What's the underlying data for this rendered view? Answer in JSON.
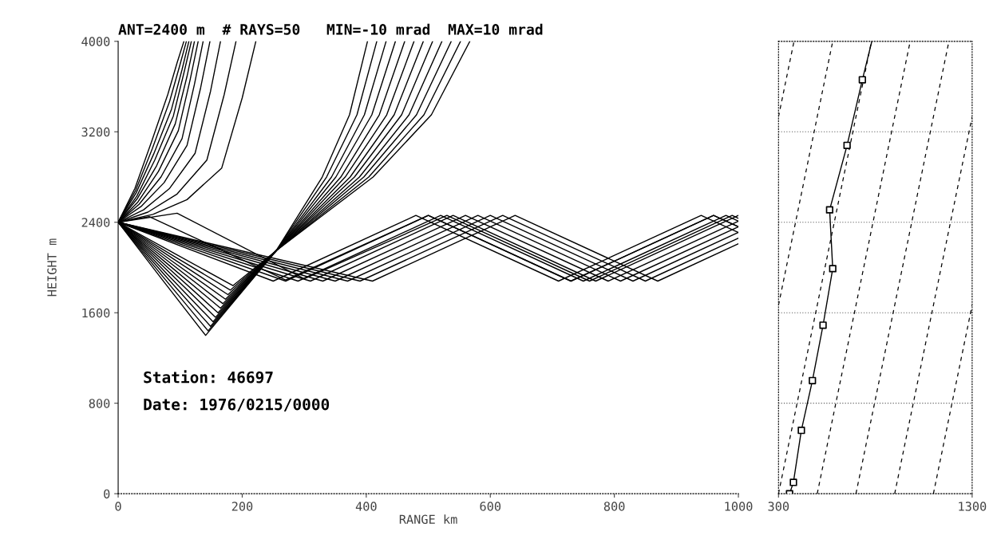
{
  "chart_data": [
    {
      "type": "line",
      "title": "ANT=2400 m  # RAYS=50   MIN=-10 mrad  MAX=10 mrad",
      "xlabel": "RANGE km",
      "ylabel": "HEIGHT m",
      "xlim": [
        0,
        1000
      ],
      "ylim": [
        0,
        4000
      ],
      "xticks": [
        0,
        200,
        400,
        600,
        800,
        1000
      ],
      "yticks": [
        0,
        800,
        1600,
        2400,
        3200,
        4000
      ],
      "grid": false,
      "legend": false,
      "color": "#000000",
      "annotations": [
        "Station: 46697",
        "Date: 1976/0215/0000"
      ],
      "series": [
        {
          "x": [
            0,
            27,
            53,
            80,
            95,
            106
          ],
          "values": [
            2400,
            2700,
            3100,
            3530,
            3810,
            4000
          ]
        },
        {
          "x": [
            0,
            28,
            55,
            83,
            99,
            110
          ],
          "values": [
            2400,
            2680,
            3050,
            3470,
            3780,
            4000
          ]
        },
        {
          "x": [
            0,
            29,
            57,
            86,
            103,
            114
          ],
          "values": [
            2400,
            2660,
            3000,
            3400,
            3750,
            4000
          ]
        },
        {
          "x": [
            0,
            30,
            59,
            89,
            106,
            118
          ],
          "values": [
            2400,
            2630,
            2950,
            3340,
            3720,
            4000
          ]
        },
        {
          "x": [
            0,
            31,
            62,
            92,
            111,
            123
          ],
          "values": [
            2400,
            2610,
            2900,
            3270,
            3690,
            4000
          ]
        },
        {
          "x": [
            0,
            32,
            65,
            97,
            116,
            129
          ],
          "values": [
            2400,
            2580,
            2850,
            3210,
            3660,
            4000
          ]
        },
        {
          "x": [
            0,
            34,
            69,
            103,
            123,
            137
          ],
          "values": [
            2400,
            2560,
            2800,
            3140,
            3620,
            4000
          ]
        },
        {
          "x": [
            0,
            37,
            74,
            111,
            133,
            148
          ],
          "values": [
            2400,
            2540,
            2750,
            3080,
            3590,
            4000
          ]
        },
        {
          "x": [
            0,
            41,
            83,
            124,
            149,
            165
          ],
          "values": [
            2400,
            2510,
            2700,
            3010,
            3560,
            4000
          ]
        },
        {
          "x": [
            0,
            48,
            95,
            143,
            171,
            190
          ],
          "values": [
            2400,
            2490,
            2650,
            2950,
            3530,
            4000
          ]
        },
        {
          "x": [
            0,
            56,
            111,
            167,
            200,
            222
          ],
          "values": [
            2400,
            2470,
            2600,
            2880,
            3500,
            4000
          ]
        },
        {
          "x": [
            0,
            70,
            141,
            255,
            329,
            373,
            402
          ],
          "values": [
            2400,
            1900,
            1400,
            2150,
            2800,
            3350,
            4000
          ]
        },
        {
          "x": [
            0,
            72,
            145,
            255,
            336,
            385,
            417
          ],
          "values": [
            2400,
            1920,
            1440,
            2150,
            2800,
            3350,
            4000
          ]
        },
        {
          "x": [
            0,
            74,
            149,
            255,
            344,
            397,
            432
          ],
          "values": [
            2400,
            1940,
            1480,
            2150,
            2800,
            3350,
            4000
          ]
        },
        {
          "x": [
            0,
            76,
            153,
            255,
            351,
            409,
            447
          ],
          "values": [
            2400,
            1960,
            1520,
            2150,
            2800,
            3350,
            4000
          ]
        },
        {
          "x": [
            0,
            78,
            157,
            255,
            359,
            421,
            462
          ],
          "values": [
            2400,
            1980,
            1560,
            2150,
            2800,
            3350,
            4000
          ]
        },
        {
          "x": [
            0,
            80,
            161,
            255,
            366,
            433,
            477
          ],
          "values": [
            2400,
            2000,
            1600,
            2150,
            2800,
            3350,
            4000
          ]
        },
        {
          "x": [
            0,
            82,
            165,
            255,
            374,
            445,
            492
          ],
          "values": [
            2400,
            2020,
            1640,
            2150,
            2800,
            3350,
            4000
          ]
        },
        {
          "x": [
            0,
            84,
            169,
            255,
            381,
            457,
            507
          ],
          "values": [
            2400,
            2040,
            1680,
            2150,
            2800,
            3350,
            4000
          ]
        },
        {
          "x": [
            0,
            86,
            173,
            255,
            389,
            469,
            522
          ],
          "values": [
            2400,
            2060,
            1720,
            2150,
            2800,
            3350,
            4000
          ]
        },
        {
          "x": [
            0,
            88,
            177,
            255,
            396,
            481,
            537
          ],
          "values": [
            2400,
            2080,
            1760,
            2150,
            2800,
            3350,
            4000
          ]
        },
        {
          "x": [
            0,
            90,
            181,
            255,
            404,
            493,
            552
          ],
          "values": [
            2400,
            2100,
            1800,
            2150,
            2800,
            3350,
            4000
          ]
        },
        {
          "x": [
            0,
            92,
            185,
            255,
            411,
            505,
            567
          ],
          "values": [
            2400,
            2120,
            1840,
            2150,
            2800,
            3350,
            4000
          ]
        },
        {
          "x": [
            0,
            250,
            480,
            710,
            940,
            1000
          ],
          "values": [
            2400,
            1880,
            2460,
            1880,
            2460,
            2310
          ]
        },
        {
          "x": [
            0,
            270,
            500,
            730,
            960,
            1000
          ],
          "values": [
            2400,
            1880,
            2460,
            1880,
            2460,
            2360
          ]
        },
        {
          "x": [
            0,
            290,
            520,
            750,
            980,
            1000
          ],
          "values": [
            2400,
            1880,
            2460,
            1880,
            2460,
            2410
          ]
        },
        {
          "x": [
            0,
            310,
            540,
            770,
            1000
          ],
          "values": [
            2400,
            1880,
            2460,
            1880,
            2460
          ]
        },
        {
          "x": [
            0,
            330,
            560,
            790,
            1000
          ],
          "values": [
            2400,
            1880,
            2460,
            1880,
            2410
          ]
        },
        {
          "x": [
            0,
            350,
            580,
            810,
            1000
          ],
          "values": [
            2400,
            1880,
            2460,
            1880,
            2360
          ]
        },
        {
          "x": [
            0,
            370,
            600,
            830,
            1000
          ],
          "values": [
            2400,
            1880,
            2460,
            1880,
            2310
          ]
        },
        {
          "x": [
            0,
            390,
            620,
            850,
            1000
          ],
          "values": [
            2400,
            1880,
            2460,
            1880,
            2260
          ]
        },
        {
          "x": [
            0,
            410,
            640,
            870,
            1000
          ],
          "values": [
            2400,
            1880,
            2460,
            1880,
            2210
          ]
        },
        {
          "x": [
            0,
            95,
            300,
            530,
            760,
            990,
            1000
          ],
          "values": [
            2400,
            2480,
            1900,
            2460,
            1880,
            2460,
            2435
          ]
        },
        {
          "x": [
            0,
            50,
            270,
            500,
            730,
            960,
            1000
          ],
          "values": [
            2400,
            2450,
            1890,
            2460,
            1880,
            2460,
            2360
          ]
        }
      ]
    },
    {
      "type": "line",
      "xlim": [
        300,
        1300
      ],
      "ylim": [
        0,
        4000
      ],
      "xticks": [
        300,
        1300
      ],
      "yticks": [
        {
          "value": 800,
          "label": null
        },
        {
          "value": 1600,
          "label": null
        },
        {
          "value": 2400,
          "label": null
        },
        {
          "value": 3200,
          "label": null
        }
      ],
      "tick_labels": "x",
      "grid": "y",
      "legend": false,
      "color": "#000000",
      "series": [
        {
          "x": [
            300,
            380
          ],
          "values": [
            3333,
            4000
          ],
          "line_style": "dashed"
        },
        {
          "x": [
            300,
            580
          ],
          "values": [
            1667,
            4000
          ],
          "line_style": "dashed"
        },
        {
          "x": [
            300,
            780
          ],
          "values": [
            0,
            4000
          ],
          "line_style": "dashed"
        },
        {
          "x": [
            500,
            980
          ],
          "values": [
            0,
            4000
          ],
          "line_style": "dashed"
        },
        {
          "x": [
            700,
            1180
          ],
          "values": [
            0,
            4000
          ],
          "line_style": "dashed"
        },
        {
          "x": [
            900,
            1300
          ],
          "values": [
            0,
            3333
          ],
          "line_style": "dashed"
        },
        {
          "x": [
            1100,
            1300
          ],
          "values": [
            0,
            1667
          ],
          "line_style": "dashed"
        },
        {
          "x": [
            357,
            377,
            418,
            475,
            530,
            580,
            564,
            654,
            733,
            782
          ],
          "values": [
            0,
            100,
            560,
            1000,
            1490,
            1990,
            2510,
            3080,
            3660,
            4000
          ],
          "line_style": "solid"
        },
        {
          "type": "scatter",
          "x": [
            357,
            377,
            418,
            475,
            530,
            580,
            564,
            654,
            733
          ],
          "values": [
            0,
            100,
            560,
            1000,
            1490,
            1990,
            2510,
            3080,
            3660
          ],
          "marker": "square"
        }
      ]
    }
  ]
}
